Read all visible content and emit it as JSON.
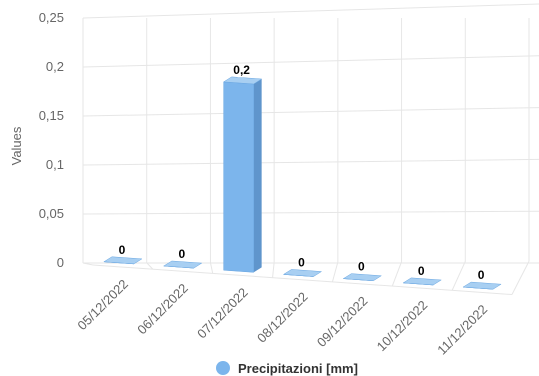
{
  "chart_data": {
    "type": "bar",
    "categories": [
      "05/12/2022",
      "06/12/2022",
      "07/12/2022",
      "08/12/2022",
      "09/12/2022",
      "10/12/2022",
      "11/12/2022"
    ],
    "series": [
      {
        "name": "Precipitazioni [mm]",
        "values": [
          0,
          0,
          0.2,
          0,
          0,
          0,
          0
        ]
      }
    ],
    "data_labels": [
      "0",
      "0",
      "0,2",
      "0",
      "0",
      "0",
      "0"
    ],
    "y_ticks": [
      "0",
      "0,05",
      "0,1",
      "0,15",
      "0,2",
      "0,25"
    ],
    "ylim": [
      0,
      0.25
    ],
    "ylabel": "Values",
    "xlabel": "",
    "grid": true,
    "legend_position": "bottom",
    "colors": {
      "bar_front": "#7cb5ec",
      "bar_side": "#5f95cc",
      "bar_top": "#a8cff2",
      "grid": "#e6e6e6"
    }
  }
}
